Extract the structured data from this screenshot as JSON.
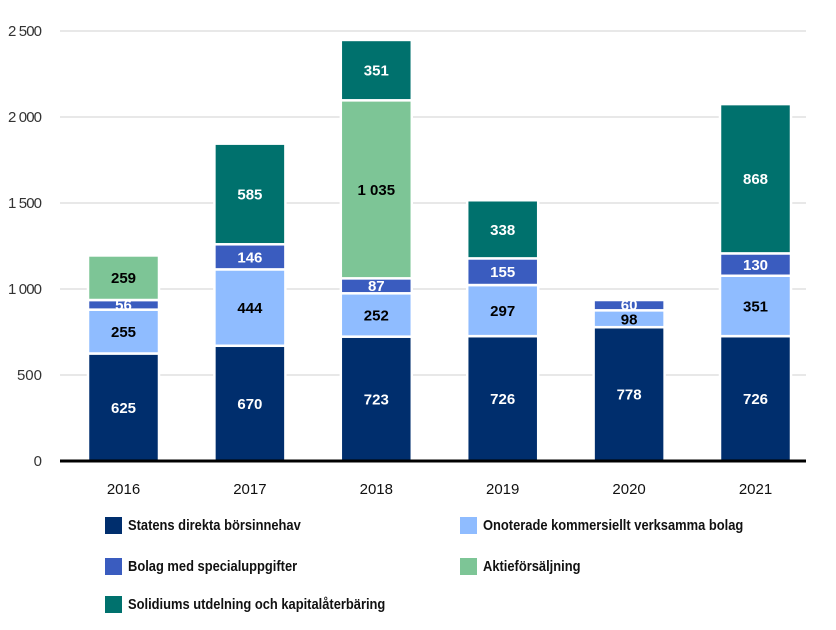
{
  "chart_data": {
    "type": "bar",
    "stacked": true,
    "title": "",
    "xlabel": "",
    "ylabel": "",
    "ylim": [
      0,
      2500
    ],
    "yticks": [
      0,
      500,
      1000,
      1500,
      2000,
      2500
    ],
    "ytick_labels": [
      "0",
      "500",
      "1 000",
      "1 500",
      "2 000",
      "2 500"
    ],
    "grid": true,
    "legend_position": "bottom",
    "categories": [
      "2016",
      "2017",
      "2018",
      "2019",
      "2020",
      "2021"
    ],
    "series": [
      {
        "name": "Statens direkta börsinnehav",
        "color": "#002e6d",
        "label_color": "#ffffff",
        "values": [
          625,
          670,
          723,
          726,
          778,
          726
        ],
        "labels": [
          "625",
          "670",
          "723",
          "726",
          "778",
          "726"
        ]
      },
      {
        "name": "Onoterade kommersiellt verksamma bolag",
        "color": "#8fbcff",
        "label_color": "#000000",
        "values": [
          255,
          444,
          252,
          297,
          98,
          351
        ],
        "labels": [
          "255",
          "444",
          "252",
          "297",
          "98",
          "351"
        ]
      },
      {
        "name": "Bolag med specialuppgifter",
        "color": "#3a5cbf",
        "label_color": "#ffffff",
        "values": [
          56,
          146,
          87,
          155,
          60,
          130
        ],
        "labels": [
          "56",
          "146",
          "87",
          "155",
          "60",
          "130"
        ]
      },
      {
        "name": "Aktieförsäljning",
        "color": "#7dc596",
        "label_color": "#000000",
        "values": [
          259,
          0,
          1035,
          0,
          0,
          0
        ],
        "labels": [
          "259",
          "",
          "1 035",
          "",
          "",
          ""
        ]
      },
      {
        "name": "Solidiums utdelning och kapitalåterbäring",
        "color": "#00716d",
        "label_color": "#ffffff",
        "values": [
          0,
          585,
          351,
          338,
          0,
          868
        ],
        "labels": [
          "",
          "585",
          "351",
          "338",
          "",
          "868"
        ]
      }
    ]
  }
}
